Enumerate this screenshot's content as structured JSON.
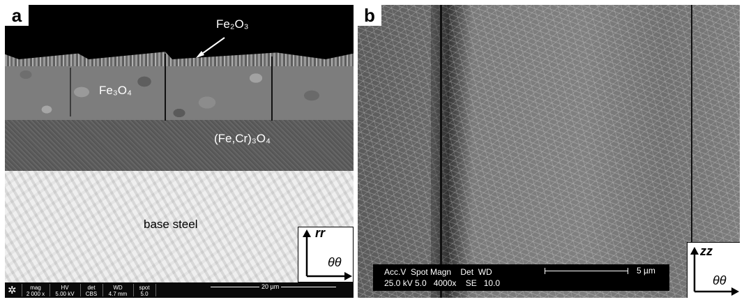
{
  "panel_a": {
    "letter": "a",
    "labels": {
      "fe2o3": "Fe₂O₃",
      "fe3o4": "Fe₃O₄",
      "spinel": "(Fe,Cr)₃O₄",
      "base_steel": "base steel"
    },
    "axes": {
      "vertical": "rr",
      "horizontal": "θθ"
    },
    "info_bar": {
      "fields": [
        {
          "label": "mag",
          "value": "2 000 x"
        },
        {
          "label": "HV",
          "value": "5.00 kV"
        },
        {
          "label": "det",
          "value": "CBS"
        },
        {
          "label": "WD",
          "value": "4.7 mm"
        },
        {
          "label": "spot",
          "value": "5.0"
        }
      ],
      "scale_label": "20 µm"
    }
  },
  "panel_b": {
    "letter": "b",
    "axes": {
      "vertical": "zz",
      "horizontal": "θθ"
    },
    "info_bar": {
      "header": "Acc.V  Spot Magn    Det  WD",
      "values": "25.0 kV 5.0   4000x    SE   10.0",
      "scale_label": "5 µm"
    }
  },
  "colors": {
    "background": "#ffffff",
    "label_text": "#ffffff",
    "info_bar": "#000000"
  }
}
